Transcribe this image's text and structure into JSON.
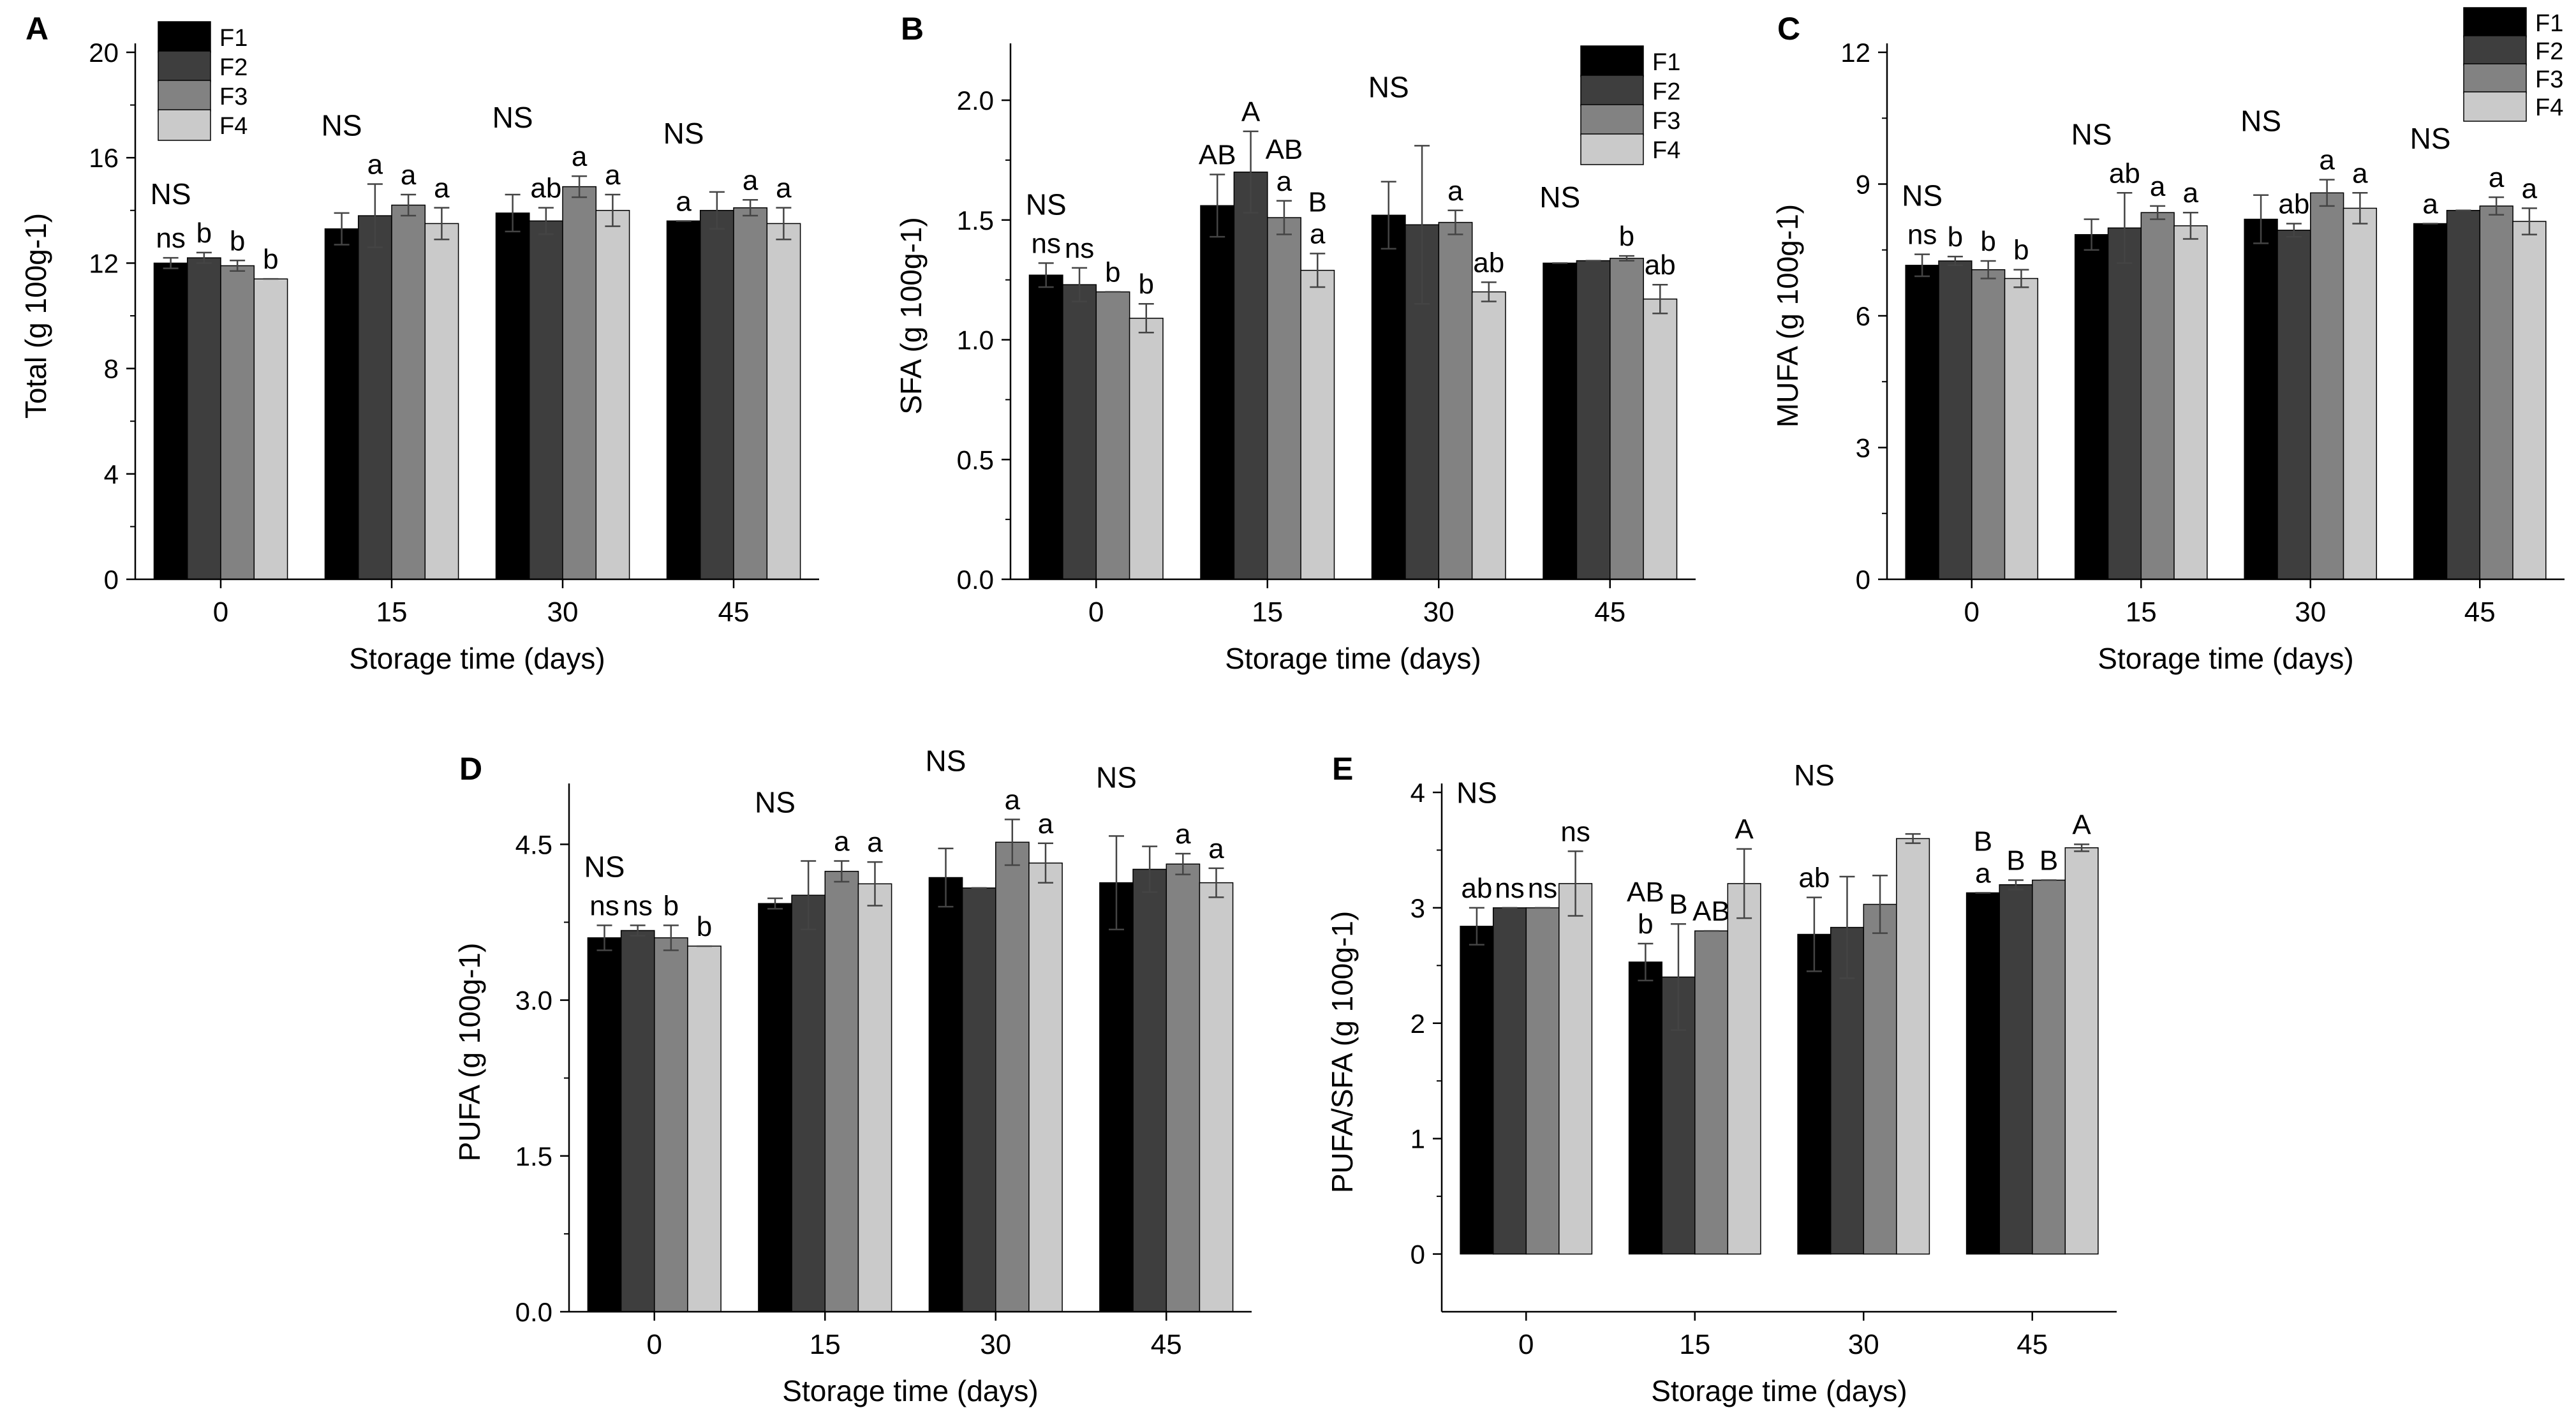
{
  "figure": {
    "legend_labels": [
      "F1",
      "F2",
      "F3",
      "F4"
    ]
  },
  "chart_data": [
    {
      "id": "A",
      "type": "bar",
      "panel_label": "A",
      "categories": [
        "0",
        "15",
        "30",
        "45"
      ],
      "xlabel": "Storage time (days)",
      "ylabel": "Total (g 100g-1)",
      "ylim": [
        0,
        20
      ],
      "yticks": [
        "0",
        "4",
        "8",
        "12",
        "16",
        "20"
      ],
      "series": [
        {
          "name": "F1",
          "values": [
            12.0,
            13.3,
            13.9,
            13.6
          ],
          "errors": [
            0.2,
            0.6,
            0.7,
            0.0
          ]
        },
        {
          "name": "F2",
          "values": [
            12.2,
            13.8,
            13.6,
            14.0
          ],
          "errors": [
            0.2,
            1.2,
            0.5,
            0.7
          ]
        },
        {
          "name": "F3",
          "values": [
            11.9,
            14.2,
            14.9,
            14.1
          ],
          "errors": [
            0.2,
            0.4,
            0.4,
            0.3
          ]
        },
        {
          "name": "F4",
          "values": [
            11.4,
            13.5,
            14.0,
            13.5
          ],
          "errors": [
            0.0,
            0.6,
            0.6,
            0.6
          ]
        }
      ],
      "group_labels": [
        [
          "NS"
        ],
        [
          "NS"
        ],
        [
          "NS"
        ],
        [
          "NS"
        ]
      ],
      "bar_labels": [
        [
          [
            "ns"
          ],
          [
            "b"
          ],
          [
            "b"
          ],
          [
            "b"
          ]
        ],
        [
          [],
          [
            "a"
          ],
          [
            "a"
          ],
          [
            "a"
          ]
        ],
        [
          [],
          [
            "ab"
          ],
          [
            "a"
          ],
          [
            "a"
          ]
        ],
        [
          [
            "a"
          ],
          [],
          [
            "a"
          ],
          [
            "a"
          ]
        ]
      ]
    },
    {
      "id": "B",
      "type": "bar",
      "panel_label": "B",
      "categories": [
        "0",
        "15",
        "30",
        "45"
      ],
      "xlabel": "Storage time (days)",
      "ylabel": "SFA (g 100g-1)",
      "ylim": [
        0,
        2.2
      ],
      "yticks": [
        "0.0",
        "0.5",
        "1.0",
        "1.5",
        "2.0"
      ],
      "series": [
        {
          "name": "F1",
          "values": [
            1.27,
            1.56,
            1.52,
            1.32
          ],
          "errors": [
            0.05,
            0.13,
            0.14,
            0.0
          ]
        },
        {
          "name": "F2",
          "values": [
            1.23,
            1.7,
            1.48,
            1.33
          ],
          "errors": [
            0.07,
            0.17,
            0.33,
            0.0
          ]
        },
        {
          "name": "F3",
          "values": [
            1.2,
            1.51,
            1.49,
            1.34
          ],
          "errors": [
            0.0,
            0.07,
            0.05,
            0.01
          ]
        },
        {
          "name": "F4",
          "values": [
            1.09,
            1.29,
            1.2,
            1.17
          ],
          "errors": [
            0.06,
            0.07,
            0.04,
            0.06
          ]
        }
      ],
      "group_labels": [
        [
          "NS"
        ],
        [],
        [
          "NS"
        ],
        [
          "NS"
        ]
      ],
      "bar_labels": [
        [
          [
            "ns"
          ],
          [
            "ns"
          ],
          [
            "b"
          ],
          [
            "b"
          ]
        ],
        [
          [
            "AB"
          ],
          [
            "A"
          ],
          [
            "AB",
            "a"
          ],
          [
            "B",
            "a"
          ]
        ],
        [
          [],
          [],
          [
            "a"
          ],
          [
            "ab"
          ]
        ],
        [
          [],
          [],
          [
            "b"
          ],
          [
            "ab"
          ]
        ]
      ]
    },
    {
      "id": "C",
      "type": "bar",
      "panel_label": "C",
      "categories": [
        "0",
        "15",
        "30",
        "45"
      ],
      "xlabel": "Storage time (days)",
      "ylabel": "MUFA (g 100g-1)",
      "ylim": [
        0,
        12
      ],
      "yticks": [
        "0",
        "3",
        "6",
        "9",
        "12"
      ],
      "series": [
        {
          "name": "F1",
          "values": [
            7.15,
            7.85,
            8.2,
            8.1
          ],
          "errors": [
            0.25,
            0.35,
            0.55,
            0.0
          ]
        },
        {
          "name": "F2",
          "values": [
            7.25,
            8.0,
            7.95,
            8.4
          ],
          "errors": [
            0.1,
            0.8,
            0.15,
            0.0
          ]
        },
        {
          "name": "F3",
          "values": [
            7.05,
            8.35,
            8.8,
            8.5
          ],
          "errors": [
            0.2,
            0.15,
            0.3,
            0.2
          ]
        },
        {
          "name": "F4",
          "values": [
            6.85,
            8.05,
            8.45,
            8.15
          ],
          "errors": [
            0.2,
            0.3,
            0.35,
            0.3
          ]
        }
      ],
      "group_labels": [
        [
          "NS"
        ],
        [
          "NS"
        ],
        [
          "NS"
        ],
        [
          "NS"
        ]
      ],
      "bar_labels": [
        [
          [
            "ns"
          ],
          [
            "b"
          ],
          [
            "b"
          ],
          [
            "b"
          ]
        ],
        [
          [],
          [
            "ab"
          ],
          [
            "a"
          ],
          [
            "a"
          ]
        ],
        [
          [],
          [
            "ab"
          ],
          [
            "a"
          ],
          [
            "a"
          ]
        ],
        [
          [
            "a"
          ],
          [],
          [
            "a"
          ],
          [
            "a"
          ]
        ]
      ]
    },
    {
      "id": "D",
      "type": "bar",
      "panel_label": "D",
      "categories": [
        "0",
        "15",
        "30",
        "45"
      ],
      "xlabel": "Storage time (days)",
      "ylabel": "PUFA (g 100g-1)",
      "ylim": [
        0,
        5.0
      ],
      "yticks": [
        "0.0",
        "1.5",
        "3.0",
        "4.5"
      ],
      "series": [
        {
          "name": "F1",
          "values": [
            3.6,
            3.93,
            4.18,
            4.13
          ],
          "errors": [
            0.12,
            0.05,
            0.28,
            0.45
          ]
        },
        {
          "name": "F2",
          "values": [
            3.67,
            4.01,
            4.08,
            4.26
          ],
          "errors": [
            0.05,
            0.33,
            0.0,
            0.22
          ]
        },
        {
          "name": "F3",
          "values": [
            3.6,
            4.24,
            4.52,
            4.31
          ],
          "errors": [
            0.12,
            0.1,
            0.22,
            0.1
          ]
        },
        {
          "name": "F4",
          "values": [
            3.52,
            4.12,
            4.32,
            4.13
          ],
          "errors": [
            0.0,
            0.21,
            0.19,
            0.14
          ]
        }
      ],
      "group_labels": [
        [
          "NS"
        ],
        [
          "NS"
        ],
        [
          "NS"
        ],
        [
          "NS"
        ]
      ],
      "bar_labels": [
        [
          [
            "ns"
          ],
          [
            "ns"
          ],
          [
            "b"
          ],
          [
            "b"
          ]
        ],
        [
          [],
          [],
          [
            "a"
          ],
          [
            "a"
          ]
        ],
        [
          [],
          [],
          [
            "a"
          ],
          [
            "a"
          ]
        ],
        [
          [],
          [],
          [
            "a"
          ],
          [
            "a"
          ]
        ]
      ]
    },
    {
      "id": "E",
      "type": "bar",
      "panel_label": "E",
      "categories": [
        "0",
        "15",
        "30",
        "45"
      ],
      "xlabel": "Storage time (days)",
      "ylabel": "PUFA/SFA (g 100g-1)",
      "ylim": [
        -0.5,
        4
      ],
      "yticks": [
        "0",
        "1",
        "2",
        "3",
        "4"
      ],
      "series": [
        {
          "name": "F1",
          "values": [
            2.84,
            2.53,
            2.77,
            3.13
          ],
          "errors": [
            0.16,
            0.16,
            0.32,
            0.0
          ]
        },
        {
          "name": "F2",
          "values": [
            3.0,
            2.4,
            2.83,
            3.2
          ],
          "errors": [
            0.0,
            0.46,
            0.44,
            0.04
          ]
        },
        {
          "name": "F3",
          "values": [
            3.0,
            2.8,
            3.03,
            3.24
          ],
          "errors": [
            0.0,
            0.0,
            0.25,
            0.0
          ]
        },
        {
          "name": "F4",
          "values": [
            3.21,
            3.21,
            3.6,
            3.52
          ],
          "errors": [
            0.28,
            0.3,
            0.04,
            0.03
          ]
        }
      ],
      "group_labels": [
        [
          "NS"
        ],
        [],
        [
          "NS"
        ],
        []
      ],
      "bar_labels": [
        [
          [
            "ab"
          ],
          [
            "ns"
          ],
          [
            "ns"
          ],
          [
            "ns"
          ]
        ],
        [
          [
            "AB",
            "b"
          ],
          [
            "B"
          ],
          [
            "AB"
          ],
          [
            "A"
          ]
        ],
        [
          [
            "ab"
          ],
          [],
          [],
          []
        ],
        [
          [
            "B",
            "a"
          ],
          [
            "B"
          ],
          [
            "B"
          ],
          [
            "A"
          ]
        ]
      ]
    }
  ]
}
